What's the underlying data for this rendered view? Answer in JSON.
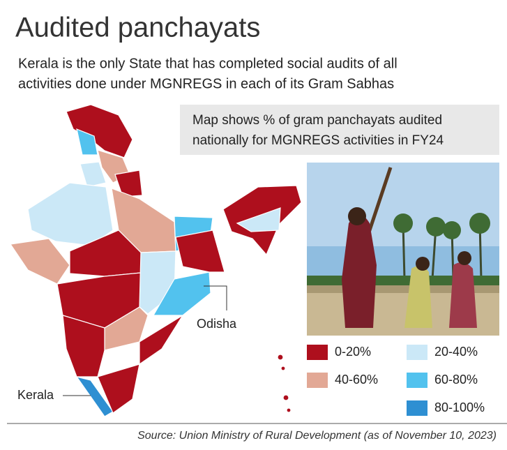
{
  "header": {
    "title": "Audited panchayats",
    "subtitle": [
      "Kerala is the only State that has completed social audits of all",
      "activities done under MGNREGS in each of its Gram Sabhas"
    ]
  },
  "note": [
    "Map shows % of gram panchayats audited",
    "nationally for MGNREGS activities in FY24"
  ],
  "map": {
    "labels": [
      "Odisha",
      "Kerala"
    ]
  },
  "legend": [
    {
      "label": "0-20%",
      "color": "#ae0f1d"
    },
    {
      "label": "20-40%",
      "color": "#cbe8f7"
    },
    {
      "label": "40-60%",
      "color": "#e2a895"
    },
    {
      "label": "60-80%",
      "color": "#52c2ee"
    },
    {
      "label": "80-100%",
      "color": "#2e8fd2"
    }
  ],
  "source": "Source: Union Ministry of Rural Development (as of November 10, 2023)"
}
